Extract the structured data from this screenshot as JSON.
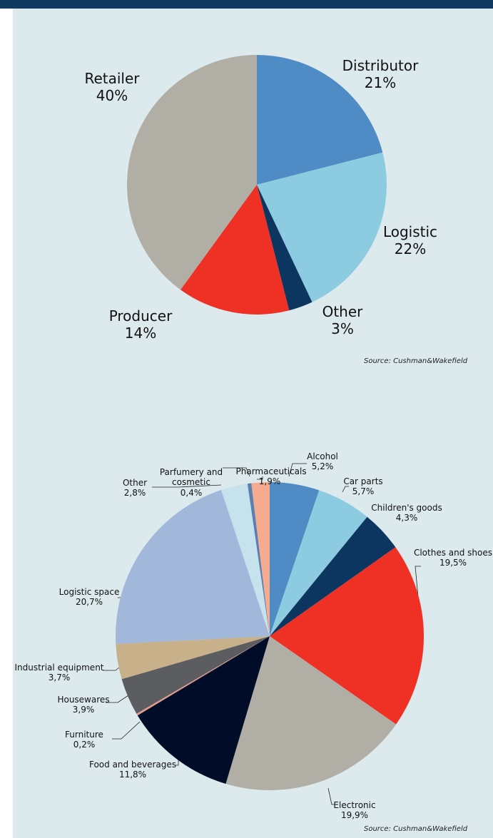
{
  "chart_data": [
    {
      "type": "pie",
      "categories": [
        "Distributor",
        "Logistic",
        "Other",
        "Producer",
        "Retailer"
      ],
      "values": [
        21,
        22,
        3,
        14,
        40
      ],
      "value_labels": [
        "21%",
        "22%",
        "3%",
        "14%",
        "40%"
      ],
      "colors": [
        "#4f8bc4",
        "#8dcbe0",
        "#0c3560",
        "#ef3125",
        "#b0aea5"
      ],
      "source": "Source: Cushman&Wakefield"
    },
    {
      "type": "pie",
      "categories": [
        "Alcohol",
        "Car parts",
        "Children's goods",
        "Clothes and shoes",
        "Electronic",
        "Food and beverages",
        "Furniture",
        "Housewares",
        "Industrial equipment",
        "Logistic space",
        "Other",
        "Parfumery and cosmetic",
        "Pharmaceuticals"
      ],
      "values": [
        5.2,
        5.7,
        4.3,
        19.5,
        19.9,
        11.8,
        0.2,
        3.9,
        3.7,
        20.7,
        2.8,
        0.4,
        1.9
      ],
      "value_labels": [
        "5,2%",
        "5,7%",
        "4,3%",
        "19,5%",
        "19,9%",
        "11,8%",
        "0,2%",
        "3,9%",
        "3,7%",
        "20,7%",
        "2,8%",
        "0,4%",
        "1,9%"
      ],
      "colors": [
        "#4f8bc4",
        "#8dcbe0",
        "#0c3560",
        "#ef3125",
        "#b0aea5",
        "#000c28",
        "#e99a8a",
        "#5c5d61",
        "#c8b08a",
        "#a2b8da",
        "#c6e2ec",
        "#5a7fb0",
        "#f5ab8f"
      ],
      "source": "Source: Cushman&Wakefield"
    }
  ]
}
